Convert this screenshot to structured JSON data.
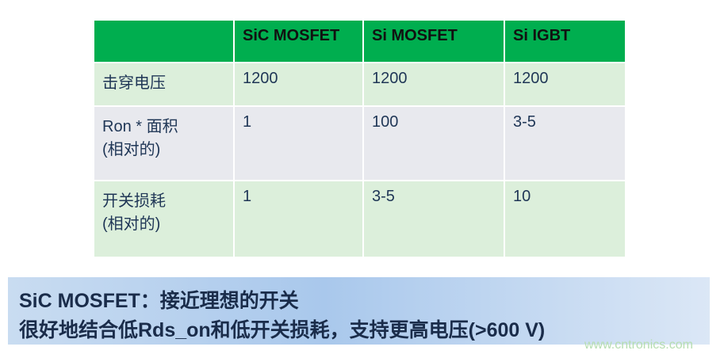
{
  "table": {
    "headers": [
      "",
      "SiC MOSFET",
      "Si MOSFET",
      "Si IGBT"
    ],
    "rows": [
      {
        "label": "击穿电压",
        "label2": "",
        "values": [
          "1200",
          "1200",
          "1200"
        ]
      },
      {
        "label": "Ron * 面积",
        "label2": "(相对的)",
        "values": [
          "1",
          "100",
          "3-5"
        ]
      },
      {
        "label": "开关损耗",
        "label2": "(相对的)",
        "values": [
          "1",
          "3-5",
          "10"
        ]
      }
    ]
  },
  "banner": {
    "line1": "SiC MOSFET：接近理想的开关",
    "line2": "很好地结合低Rds_on和低开关损耗，支持更高电压(>600 V)"
  },
  "watermark": "www.cntronics.com"
}
